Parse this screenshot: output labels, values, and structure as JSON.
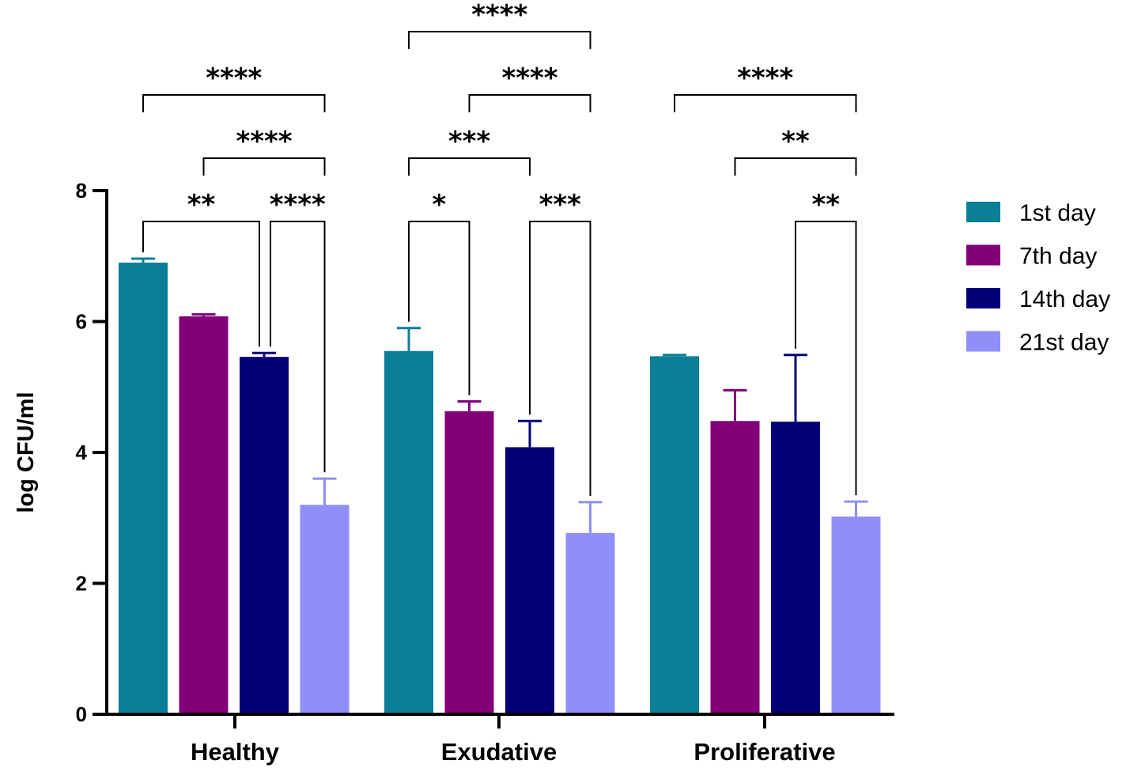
{
  "chart_data": {
    "type": "bar",
    "title": "",
    "xlabel": "",
    "ylabel": "log CFU/ml",
    "ylim": [
      0,
      8
    ],
    "yticks": [
      0,
      2,
      4,
      6,
      8
    ],
    "yticks_labels": [
      "0",
      "2",
      "4",
      "6",
      "8"
    ],
    "categories": [
      "Healthy",
      "Exudative",
      "Proliferative"
    ],
    "legend_position": "right",
    "series": [
      {
        "name": "1st day",
        "color": "#0b7f97",
        "values": [
          6.9,
          5.55,
          5.47
        ],
        "errors": [
          0.06,
          0.35,
          0.02
        ]
      },
      {
        "name": "7th day",
        "color": "#820078",
        "values": [
          6.08,
          4.63,
          4.48
        ],
        "errors": [
          0.03,
          0.15,
          0.47
        ]
      },
      {
        "name": "14th day",
        "color": "#040078",
        "values": [
          5.46,
          4.08,
          4.47
        ],
        "errors": [
          0.06,
          0.4,
          1.02
        ]
      },
      {
        "name": "21st day",
        "color": "#8f8ff7",
        "values": [
          3.2,
          2.77,
          3.02
        ],
        "errors": [
          0.4,
          0.47,
          0.23
        ]
      }
    ],
    "significance": [
      {
        "group": 0,
        "from": 0,
        "to": 2,
        "label": "**",
        "level": 0
      },
      {
        "group": 0,
        "from": 2,
        "to": 3,
        "label": "****",
        "level": 0
      },
      {
        "group": 0,
        "from": 1,
        "to": 3,
        "label": "****",
        "level": 1
      },
      {
        "group": 0,
        "from": 0,
        "to": 3,
        "label": "****",
        "level": 2
      },
      {
        "group": 1,
        "from": 0,
        "to": 1,
        "label": "*",
        "level": 0
      },
      {
        "group": 1,
        "from": 2,
        "to": 3,
        "label": "***",
        "level": 0
      },
      {
        "group": 1,
        "from": 0,
        "to": 2,
        "label": "***",
        "level": 1
      },
      {
        "group": 1,
        "from": 1,
        "to": 3,
        "label": "****",
        "level": 2
      },
      {
        "group": 1,
        "from": 0,
        "to": 3,
        "label": "****",
        "level": 3
      },
      {
        "group": 2,
        "from": 2,
        "to": 3,
        "label": "**",
        "level": 0
      },
      {
        "group": 2,
        "from": 1,
        "to": 3,
        "label": "**",
        "level": 1
      },
      {
        "group": 2,
        "from": 0,
        "to": 3,
        "label": "****",
        "level": 2
      }
    ]
  }
}
